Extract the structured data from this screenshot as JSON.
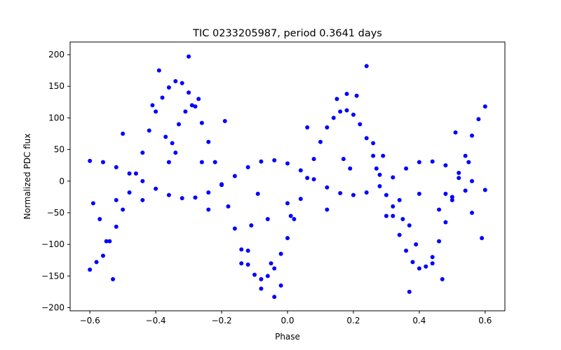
{
  "chart_data": {
    "type": "scatter",
    "title": "TIC 0233205987, period 0.3641 days",
    "xlabel": "Phase",
    "ylabel": "Normalized PDC flux",
    "xlim": [
      -0.66,
      0.66
    ],
    "ylim": [
      -205,
      220
    ],
    "xticks": [
      -0.6,
      -0.4,
      -0.2,
      0.0,
      0.2,
      0.4,
      0.6
    ],
    "xtick_labels": [
      "−0.6",
      "−0.4",
      "−0.2",
      "0.0",
      "0.2",
      "0.4",
      "0.6"
    ],
    "yticks": [
      -200,
      -150,
      -100,
      -50,
      0,
      50,
      100,
      150,
      200
    ],
    "ytick_labels": [
      "−200",
      "−150",
      "−100",
      "−50",
      "0",
      "50",
      "100",
      "150",
      "200"
    ],
    "grid": false,
    "marker_color": "#0000ff",
    "series": [
      {
        "values": [
          [
            -0.6,
            -140
          ],
          [
            -0.58,
            -128
          ],
          [
            -0.56,
            -118
          ],
          [
            -0.54,
            -95
          ],
          [
            -0.52,
            -72
          ],
          [
            -0.5,
            -45
          ],
          [
            -0.48,
            -18
          ],
          [
            -0.46,
            12
          ],
          [
            -0.44,
            45
          ],
          [
            -0.42,
            80
          ],
          [
            -0.4,
            110
          ],
          [
            -0.38,
            132
          ],
          [
            -0.36,
            148
          ],
          [
            -0.34,
            158
          ],
          [
            -0.32,
            155
          ],
          [
            -0.3,
            140
          ],
          [
            -0.28,
            118
          ],
          [
            -0.26,
            92
          ],
          [
            -0.24,
            62
          ],
          [
            -0.22,
            30
          ],
          [
            -0.2,
            -5
          ],
          [
            -0.18,
            -40
          ],
          [
            -0.16,
            -75
          ],
          [
            -0.14,
            -108
          ],
          [
            -0.12,
            -132
          ],
          [
            -0.1,
            -148
          ],
          [
            -0.08,
            -155
          ],
          [
            -0.06,
            -150
          ],
          [
            -0.04,
            -138
          ],
          [
            -0.02,
            -115
          ],
          [
            0.0,
            -90
          ],
          [
            0.02,
            -60
          ],
          [
            0.04,
            -28
          ],
          [
            0.06,
            5
          ],
          [
            0.08,
            35
          ],
          [
            0.1,
            62
          ],
          [
            0.12,
            85
          ],
          [
            0.14,
            100
          ],
          [
            0.16,
            110
          ],
          [
            0.18,
            112
          ],
          [
            0.2,
            105
          ],
          [
            0.22,
            90
          ],
          [
            0.24,
            68
          ],
          [
            0.26,
            40
          ],
          [
            0.28,
            10
          ],
          [
            0.3,
            -22
          ],
          [
            0.32,
            -55
          ],
          [
            0.34,
            -85
          ],
          [
            0.36,
            -110
          ],
          [
            0.38,
            -128
          ],
          [
            0.4,
            -138
          ],
          [
            0.42,
            -135
          ],
          [
            0.44,
            -120
          ],
          [
            0.46,
            -95
          ],
          [
            0.48,
            -65
          ],
          [
            0.5,
            -30
          ],
          [
            0.52,
            5
          ],
          [
            0.54,
            40
          ],
          [
            0.56,
            72
          ],
          [
            0.58,
            98
          ],
          [
            0.6,
            118
          ]
        ]
      },
      {
        "values": [
          [
            -0.6,
            32
          ],
          [
            -0.56,
            30
          ],
          [
            -0.52,
            22
          ],
          [
            -0.48,
            12
          ],
          [
            -0.44,
            0
          ],
          [
            -0.4,
            -12
          ],
          [
            -0.36,
            -22
          ],
          [
            -0.32,
            -27
          ],
          [
            -0.28,
            -26
          ],
          [
            -0.24,
            -18
          ],
          [
            -0.2,
            -6
          ],
          [
            -0.16,
            8
          ],
          [
            -0.12,
            22
          ],
          [
            -0.08,
            31
          ],
          [
            -0.04,
            33
          ],
          [
            0.0,
            28
          ],
          [
            0.04,
            17
          ],
          [
            0.08,
            3
          ],
          [
            0.12,
            -10
          ],
          [
            0.16,
            -19
          ],
          [
            0.2,
            -22
          ],
          [
            0.24,
            -18
          ],
          [
            0.28,
            -8
          ],
          [
            0.32,
            6
          ],
          [
            0.36,
            20
          ],
          [
            0.4,
            30
          ],
          [
            0.44,
            31
          ],
          [
            0.48,
            25
          ],
          [
            0.52,
            13
          ],
          [
            0.56,
            0
          ],
          [
            0.6,
            -14
          ]
        ]
      },
      {
        "values": [
          [
            -0.59,
            -35
          ],
          [
            -0.57,
            -60
          ],
          [
            -0.55,
            -95
          ],
          [
            -0.53,
            -155
          ],
          [
            -0.52,
            -30
          ],
          [
            -0.5,
            75
          ],
          [
            -0.44,
            -30
          ],
          [
            -0.41,
            120
          ],
          [
            -0.39,
            175
          ],
          [
            -0.37,
            70
          ],
          [
            -0.36,
            30
          ],
          [
            -0.35,
            60
          ],
          [
            -0.34,
            45
          ],
          [
            -0.33,
            90
          ],
          [
            -0.31,
            110
          ],
          [
            -0.3,
            197
          ],
          [
            -0.29,
            120
          ],
          [
            -0.27,
            130
          ],
          [
            -0.26,
            30
          ],
          [
            -0.24,
            -45
          ],
          [
            -0.19,
            95
          ],
          [
            -0.14,
            -130
          ],
          [
            -0.12,
            -110
          ],
          [
            -0.11,
            -70
          ],
          [
            -0.09,
            -20
          ],
          [
            -0.08,
            -170
          ],
          [
            -0.06,
            -60
          ],
          [
            -0.05,
            -130
          ],
          [
            -0.04,
            -183
          ],
          [
            -0.02,
            -165
          ],
          [
            0.0,
            -35
          ],
          [
            0.01,
            -55
          ],
          [
            0.06,
            85
          ],
          [
            0.12,
            -45
          ],
          [
            0.15,
            130
          ],
          [
            0.17,
            35
          ],
          [
            0.18,
            138
          ],
          [
            0.19,
            20
          ],
          [
            0.21,
            135
          ],
          [
            0.24,
            182
          ],
          [
            0.26,
            60
          ],
          [
            0.27,
            20
          ],
          [
            0.29,
            40
          ],
          [
            0.3,
            -55
          ],
          [
            0.32,
            -40
          ],
          [
            0.34,
            -30
          ],
          [
            0.35,
            -60
          ],
          [
            0.37,
            -70
          ],
          [
            0.37,
            -175
          ],
          [
            0.39,
            -100
          ],
          [
            0.4,
            -20
          ],
          [
            0.44,
            -130
          ],
          [
            0.46,
            -45
          ],
          [
            0.47,
            -155
          ],
          [
            0.48,
            -20
          ],
          [
            0.5,
            -25
          ],
          [
            0.51,
            77
          ],
          [
            0.54,
            -15
          ],
          [
            0.55,
            30
          ],
          [
            0.56,
            -50
          ],
          [
            0.59,
            -90
          ]
        ]
      }
    ]
  }
}
